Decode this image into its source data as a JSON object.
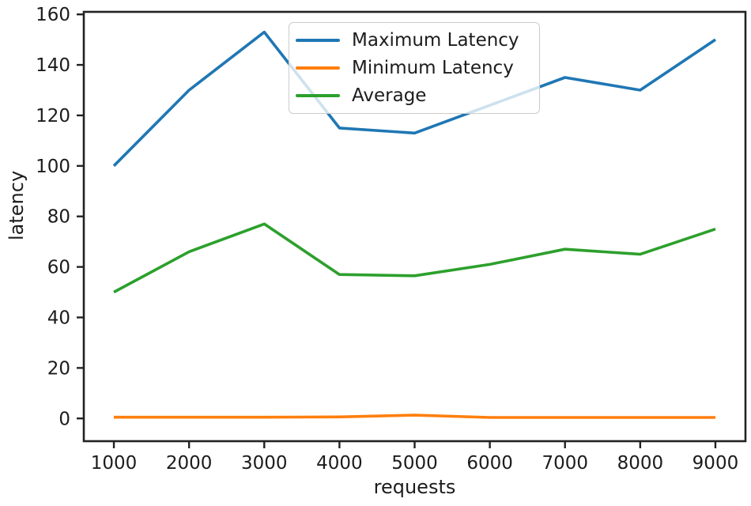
{
  "chart_data": {
    "type": "line",
    "title": "",
    "xlabel": "requests",
    "ylabel": "latency",
    "x": [
      1000,
      2000,
      3000,
      4000,
      5000,
      6000,
      7000,
      8000,
      9000
    ],
    "series": [
      {
        "name": "Maximum Latency",
        "color": "#1f77b4",
        "values": [
          100,
          130,
          153,
          115,
          113,
          124,
          135,
          130,
          150
        ]
      },
      {
        "name": "Minimum Latency",
        "color": "#ff7f0e",
        "values": [
          0.5,
          0.5,
          0.5,
          0.6,
          1.3,
          0.4,
          0.4,
          0.4,
          0.4
        ]
      },
      {
        "name": "Average",
        "color": "#2ca02c",
        "values": [
          50,
          66,
          77,
          57,
          56.5,
          61,
          67,
          65,
          75
        ]
      }
    ],
    "xticks": [
      1000,
      2000,
      3000,
      4000,
      5000,
      6000,
      7000,
      8000,
      9000
    ],
    "yticks": [
      0,
      20,
      40,
      60,
      80,
      100,
      120,
      140,
      160
    ],
    "xlim": [
      600,
      9400
    ],
    "ylim": [
      -9,
      161
    ],
    "grid": false,
    "legend_position": "upper center",
    "axis_color": "#222222",
    "text_color": "#1c1c1c",
    "background_color": "#ffffff"
  }
}
